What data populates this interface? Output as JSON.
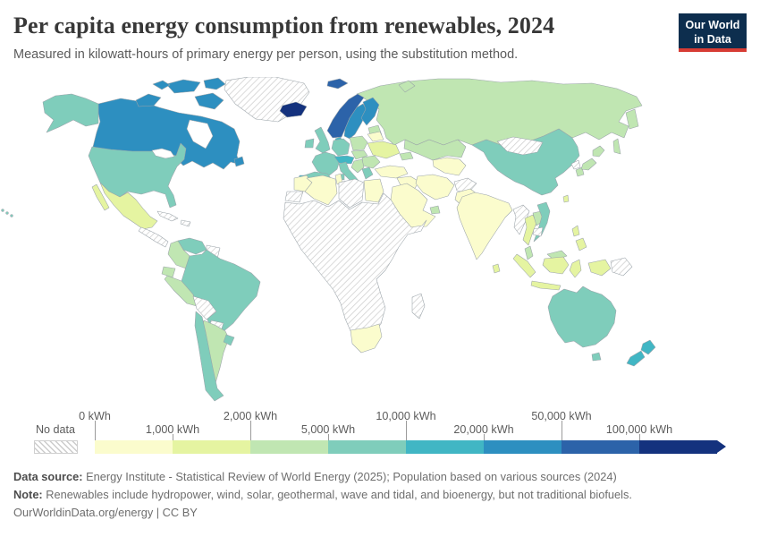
{
  "header": {
    "title": "Per capita energy consumption from renewables, 2024",
    "subtitle": "Measured in kilowatt-hours of primary energy per person, using the substitution method.",
    "logo": {
      "line1": "Our World",
      "line2": "in Data",
      "bg_color": "#0d2e4e",
      "accent_color": "#d73c34"
    }
  },
  "legend": {
    "no_data_label": "No data",
    "bins": [
      {
        "label": "0 kWh",
        "row": "top",
        "color": "#fbfccd"
      },
      {
        "label": "1,000 kWh",
        "row": "bottom",
        "color": "#e5f4a1"
      },
      {
        "label": "2,000 kWh",
        "row": "top",
        "color": "#c0e6b2"
      },
      {
        "label": "5,000 kWh",
        "row": "bottom",
        "color": "#7fcdbb"
      },
      {
        "label": "10,000 kWh",
        "row": "top",
        "color": "#41b6c4"
      },
      {
        "label": "20,000 kWh",
        "row": "bottom",
        "color": "#2d8fc0"
      },
      {
        "label": "50,000 kWh",
        "row": "top",
        "color": "#2c63a9"
      },
      {
        "label": "100,000 kWh",
        "row": "bottom",
        "color": "#14327e"
      }
    ],
    "arrow_color": "#14327e"
  },
  "chart_data": {
    "type": "choropleth",
    "geography": "world",
    "title": "Per capita energy consumption from renewables, 2024",
    "unit": "kilowatt-hours per person",
    "year": "2024",
    "bin_colors": {
      "0-1,000": "#fbfccd",
      "1,000-2,000": "#e5f4a1",
      "2,000-5,000": "#c0e6b2",
      "5,000-10,000": "#7fcdbb",
      "10,000-20,000": "#41b6c4",
      "20,000-50,000": "#2d8fc0",
      "50,000-100,000": "#2c63a9",
      "100,000+": "#14327e",
      "no-data": "hatch"
    },
    "regions": {
      "canada": "20,000-50,000",
      "usa": "5,000-10,000",
      "hawaii": "5,000-10,000",
      "greenland": "no-data",
      "iceland": "100,000+",
      "mexico": "1,000-2,000",
      "central-america": "no-data",
      "cuba": "no-data",
      "hispaniola": "no-data",
      "venezuela": "5,000-10,000",
      "colombia": "2,000-5,000",
      "guyanas": "no-data",
      "ecuador": "2,000-5,000",
      "peru": "2,000-5,000",
      "brazil": "5,000-10,000",
      "bolivia": "no-data",
      "paraguay": "no-data",
      "chile": "5,000-10,000",
      "argentina": "2,000-5,000",
      "uruguay": "5,000-10,000",
      "norway": "50,000-100,000",
      "svalbard": "50,000-100,000",
      "sweden": "20,000-50,000",
      "finland": "20,000-50,000",
      "denmark": "10,000-20,000",
      "baltics": "2,000-5,000",
      "uk": "5,000-10,000",
      "ireland": "5,000-10,000",
      "germany": "5,000-10,000",
      "poland": "2,000-5,000",
      "belarus": "0-1,000",
      "ukraine": "1,000-2,000",
      "france": "5,000-10,000",
      "alpine": "10,000-20,000",
      "czech-hungary": "2,000-5,000",
      "romania-bulgaria": "2,000-5,000",
      "balkans": "2,000-5,000",
      "italy": "5,000-10,000",
      "spain": "5,000-10,000",
      "portugal": "10,000-20,000",
      "greece": "5,000-10,000",
      "russia": "2,000-5,000",
      "kazakhstan": "2,000-5,000",
      "central-asia": "0-1,000",
      "caucasus": "2,000-5,000",
      "turkey": "0-1,000",
      "syria-iraq": "0-1,000",
      "iran": "0-1,000",
      "afghanistan": "no-data",
      "pakistan": "0-1,000",
      "arabia": "0-1,000",
      "gulf-states": "2,000-5,000",
      "india": "0-1,000",
      "sri-lanka": "1,000-2,000",
      "china": "5,000-10,000",
      "mongolia": "no-data",
      "north-korea": "no-data",
      "south-korea": "2,000-5,000",
      "japan": "2,000-5,000",
      "taiwan": "1,000-2,000",
      "myanmar": "no-data",
      "thailand": "1,000-2,000",
      "laos": "2,000-5,000",
      "vietnam": "5,000-10,000",
      "cambodia": "no-data",
      "malaysia": "2,000-5,000",
      "indonesia": "1,000-2,000",
      "papua-new-guinea": "no-data",
      "philippines": "1,000-2,000",
      "morocco": "0-1,000",
      "western-sahara": "no-data",
      "algeria": "0-1,000",
      "tunisia": "0-1,000",
      "libya": "no-data",
      "egypt": "0-1,000",
      "sub-saharan-africa": "no-data",
      "south-africa": "0-1,000",
      "madagascar": "no-data",
      "australia": "5,000-10,000",
      "new-zealand": "10,000-20,000"
    }
  },
  "footer": {
    "source_label": "Data source:",
    "source_text": " Energy Institute - Statistical Review of World Energy (2025); Population based on various sources (2024)",
    "note_label": "Note:",
    "note_text": " Renewables include hydropower, wind, solar, geothermal, wave and tidal, and bioenergy, but not traditional biofuels.",
    "license": "OurWorldinData.org/energy | CC BY"
  }
}
